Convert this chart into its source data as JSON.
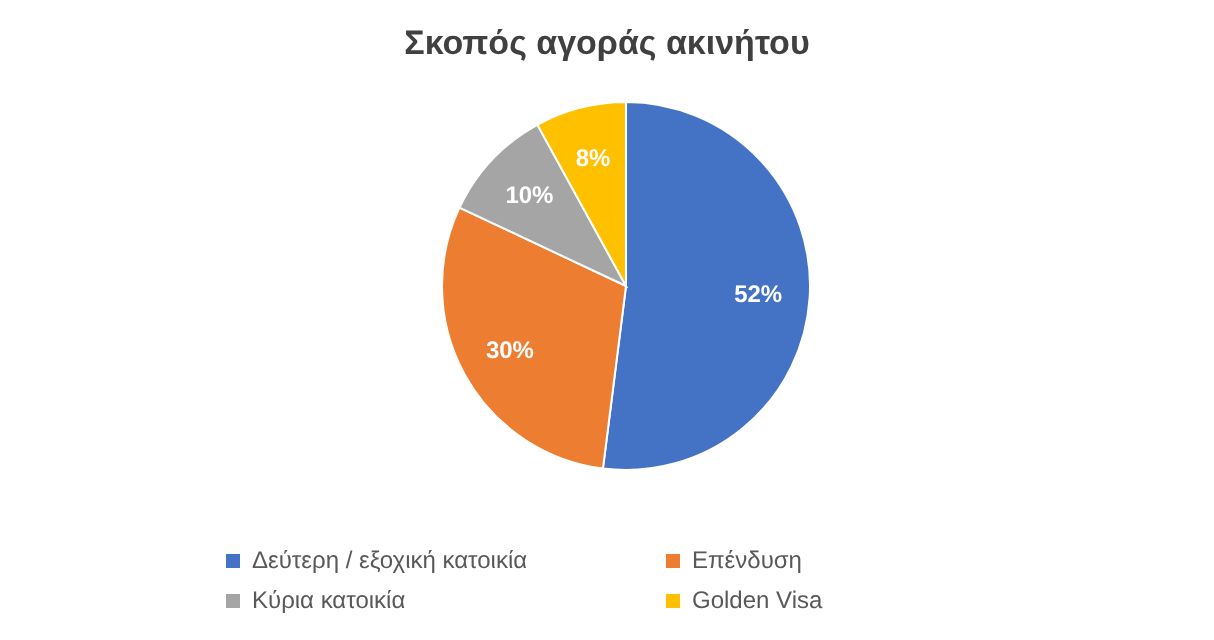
{
  "chart_data": {
    "type": "pie",
    "title": "Σκοπός αγοράς ακινήτου",
    "categories": [
      "Δεύτερη / εξοχική κατοικία",
      "Επένδυση",
      "Κύρια κατοικία",
      "Golden Visa"
    ],
    "values": [
      52,
      30,
      10,
      8
    ],
    "colors": [
      "#4472c4",
      "#ed7d31",
      "#a5a5a5",
      "#ffc000"
    ],
    "value_labels": [
      "52%",
      "30%",
      "10%",
      "8%"
    ],
    "legend": "bottom"
  }
}
